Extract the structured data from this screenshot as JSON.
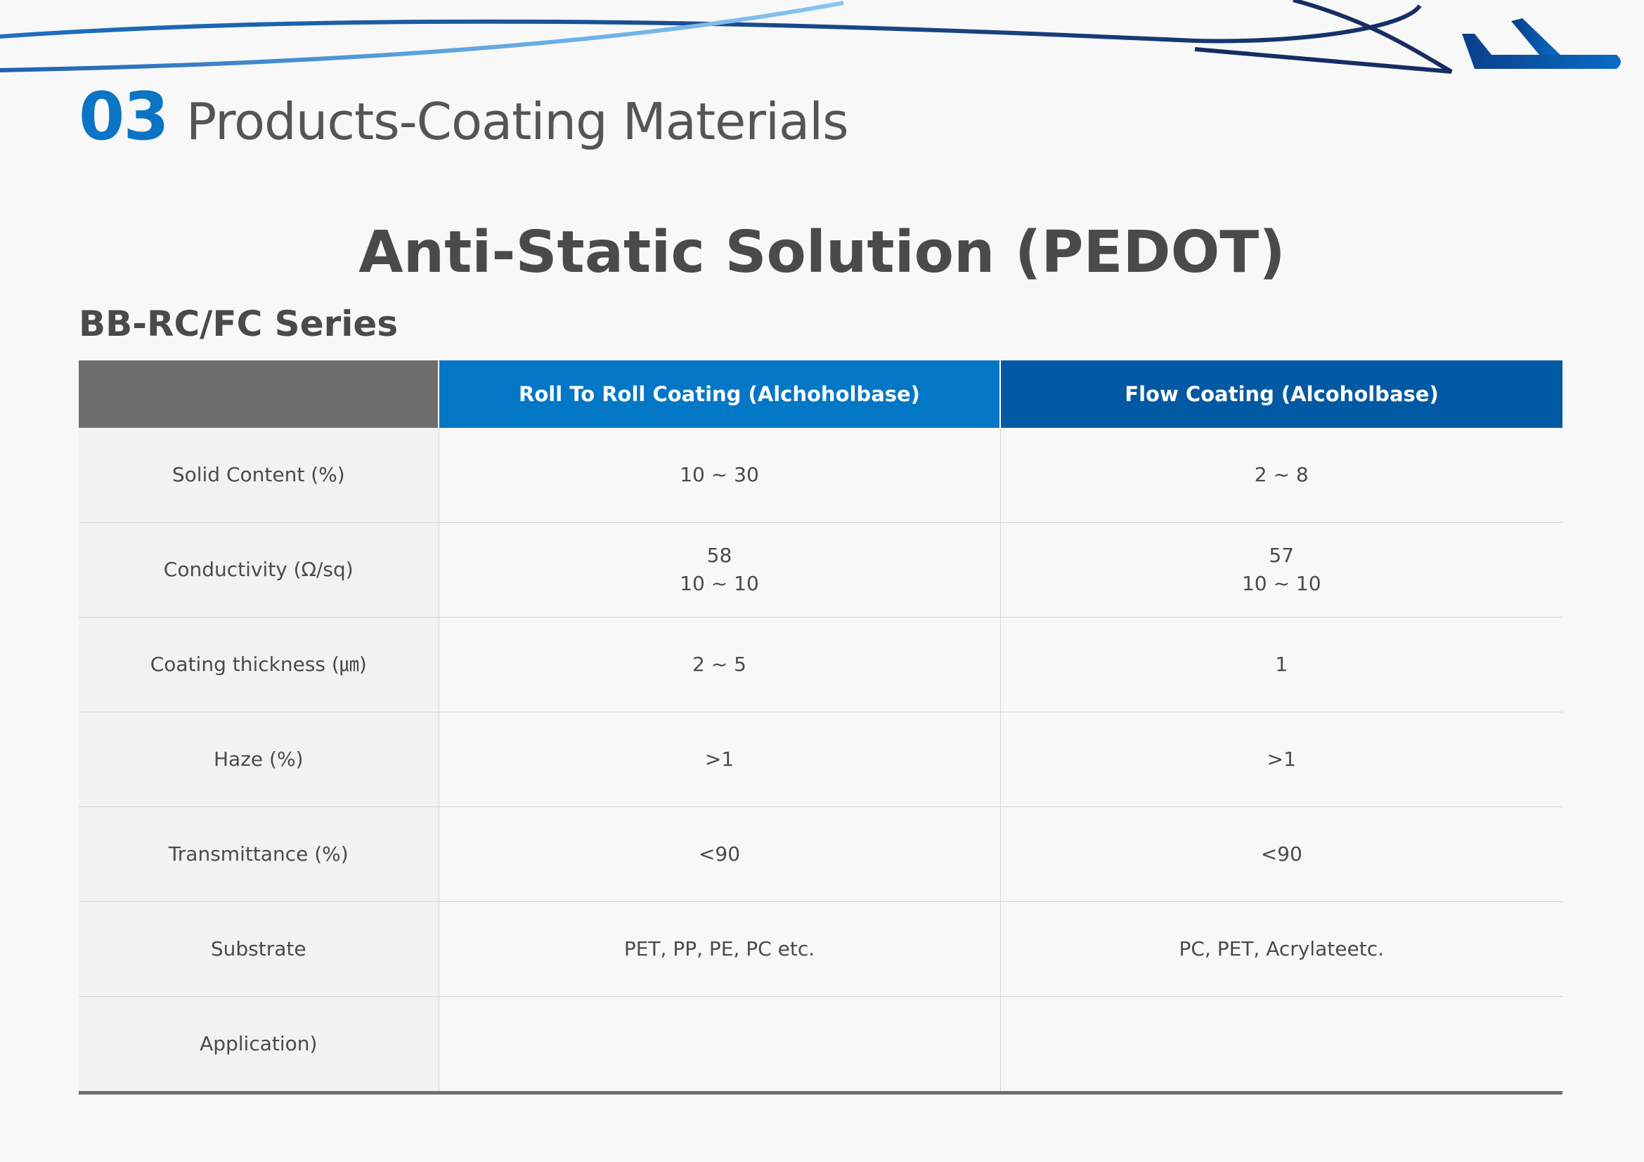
{
  "section": {
    "number": "03",
    "title": "Products-Coating Materials"
  },
  "main_title": "Anti-Static Solution (PEDOT)",
  "series_title": "BB-RC/FC Series",
  "icons": {
    "header_decoration": "airplane-icon"
  },
  "colors": {
    "accent_blue": "#0b74c4",
    "header_col1": "#0277c6",
    "header_col2": "#0259a3",
    "header_label": "#6e6e6e"
  },
  "table": {
    "headers": [
      "",
      "Roll To Roll Coating (Alchoholbase)",
      "Flow Coating (Alcoholbase)"
    ],
    "rows": [
      {
        "label": "Solid Content (%)",
        "col1": [
          "10 ~ 30"
        ],
        "col2": [
          "2 ~ 8"
        ]
      },
      {
        "label": "Conductivity (Ω/sq)",
        "col1": [
          "58",
          "10 ~ 10"
        ],
        "col2": [
          "57",
          "10 ~ 10"
        ]
      },
      {
        "label": "Coating thickness (㎛)",
        "col1": [
          "2 ~ 5"
        ],
        "col2": [
          "1"
        ]
      },
      {
        "label": "Haze (%)",
        "col1": [
          ">1"
        ],
        "col2": [
          ">1"
        ]
      },
      {
        "label": "Transmittance (%)",
        "col1": [
          "<90"
        ],
        "col2": [
          "<90"
        ]
      },
      {
        "label": "Substrate",
        "col1": [
          "PET, PP, PE, PC etc."
        ],
        "col2": [
          "PC, PET, Acrylateetc."
        ]
      },
      {
        "label": "Application)",
        "col1": [],
        "col2": []
      }
    ]
  }
}
